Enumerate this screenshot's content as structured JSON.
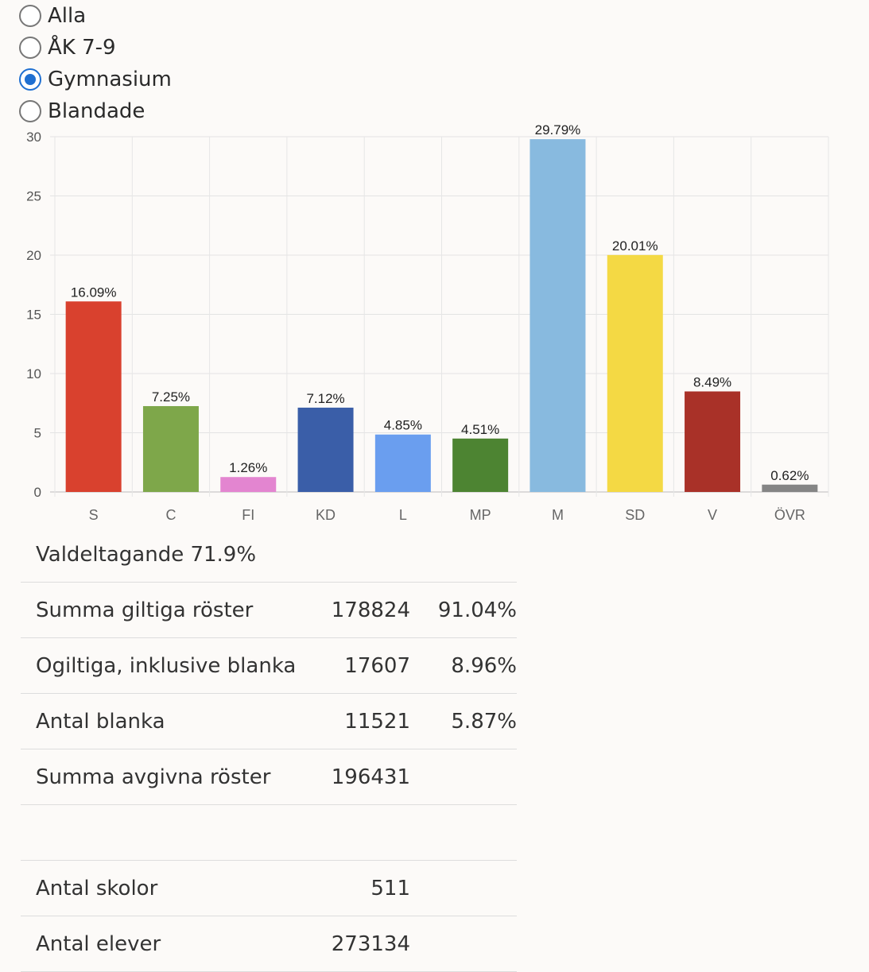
{
  "filter": {
    "options": [
      {
        "label": "Alla",
        "checked": false
      },
      {
        "label": "ÅK 7-9",
        "checked": false
      },
      {
        "label": "Gymnasium",
        "checked": true
      },
      {
        "label": "Blandade",
        "checked": false
      }
    ]
  },
  "chart_data": {
    "type": "bar",
    "categories": [
      "S",
      "C",
      "FI",
      "KD",
      "L",
      "MP",
      "M",
      "SD",
      "V",
      "ÖVR"
    ],
    "values": [
      16.09,
      7.25,
      1.26,
      7.12,
      4.85,
      4.51,
      29.79,
      20.01,
      8.49,
      0.62
    ],
    "data_labels": [
      "16.09%",
      "7.25%",
      "1.26%",
      "7.12%",
      "4.85%",
      "4.51%",
      "29.79%",
      "20.01%",
      "8.49%",
      "0.62%"
    ],
    "colors": [
      "#d9412e",
      "#7ea74a",
      "#e385d0",
      "#3a5ea8",
      "#6a9eef",
      "#4d8432",
      "#88badf",
      "#f4d944",
      "#a93128",
      "#858585"
    ],
    "ylim": [
      0,
      30
    ],
    "yticks": [
      0,
      5,
      10,
      15,
      20,
      25,
      30
    ],
    "grid": true
  },
  "stats": {
    "title": "Valdeltagande 71.9%",
    "rows": [
      {
        "label": "Summa giltiga röster",
        "count": "178824",
        "percent": "91.04%"
      },
      {
        "label": "Ogiltiga, inklusive blanka",
        "count": "17607",
        "percent": "8.96%"
      },
      {
        "label": "Antal blanka",
        "count": "11521",
        "percent": "5.87%"
      },
      {
        "label": "Summa avgivna röster",
        "count": "196431",
        "percent": ""
      }
    ],
    "school_rows": [
      {
        "label": "Antal skolor",
        "count": "511"
      },
      {
        "label": "Antal elever",
        "count": "273134"
      }
    ]
  }
}
